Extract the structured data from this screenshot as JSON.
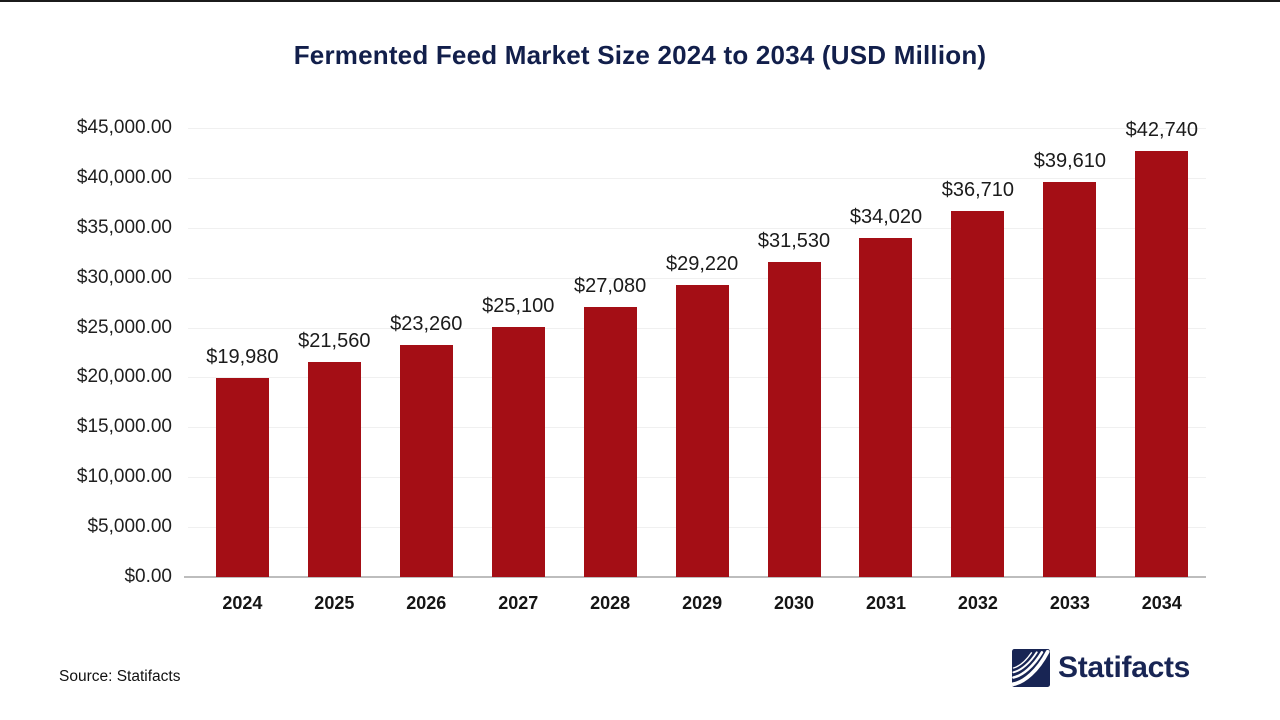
{
  "chart_data": {
    "type": "bar",
    "title": "Fermented Feed Market Size 2024 to 2034 (USD Million)",
    "categories": [
      "2024",
      "2025",
      "2026",
      "2027",
      "2028",
      "2029",
      "2030",
      "2031",
      "2032",
      "2033",
      "2034"
    ],
    "values": [
      19980,
      21560,
      23260,
      25100,
      27080,
      29220,
      31530,
      34020,
      36710,
      39610,
      42740
    ],
    "value_labels": [
      "$19,980",
      "$21,560",
      "$23,260",
      "$25,100",
      "$27,080",
      "$29,220",
      "$31,530",
      "$34,020",
      "$36,710",
      "$39,610",
      "$42,740"
    ],
    "xlabel": "",
    "ylabel": "",
    "ylim": [
      0,
      45000
    ],
    "ytick_values": [
      0,
      5000,
      10000,
      15000,
      20000,
      25000,
      30000,
      35000,
      40000,
      45000
    ],
    "ytick_labels": [
      "$0.00",
      "$5,000.00",
      "$10,000.00",
      "$15,000.00",
      "$20,000.00",
      "$25,000.00",
      "$30,000.00",
      "$35,000.00",
      "$40,000.00",
      "$45,000.00"
    ],
    "grid": true,
    "legend": false
  },
  "footer": {
    "source_label": "Source: Statifacts",
    "logo_text": "Statifacts"
  },
  "colors": {
    "bar": "#a40e15",
    "title_navy": "#121f4b",
    "logo_navy": "#182554",
    "gridline": "#f0f0f0",
    "axis_line": "#bdbdbd",
    "label_text": "#1b1b1b"
  }
}
